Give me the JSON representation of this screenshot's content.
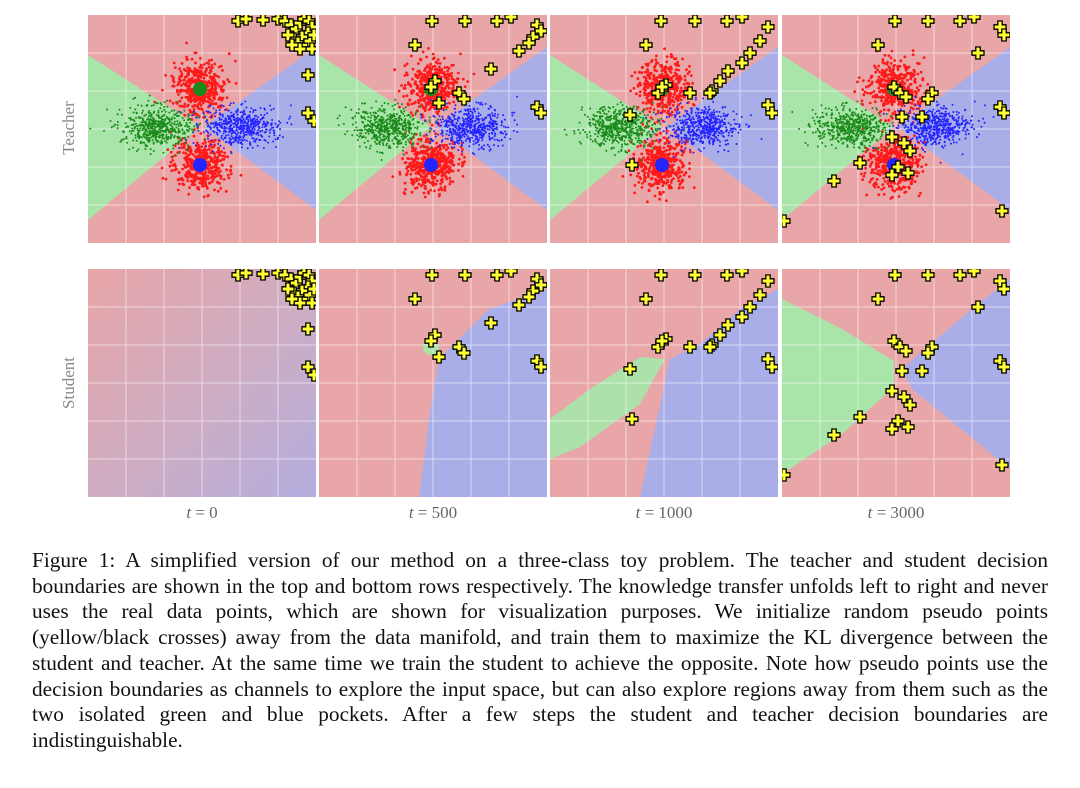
{
  "figure": {
    "row_labels": [
      "Teacher",
      "Student"
    ],
    "columns": [
      {
        "var": "t",
        "eq": " = ",
        "value": "0"
      },
      {
        "var": "t",
        "eq": " = ",
        "value": "500"
      },
      {
        "var": "t",
        "eq": " = ",
        "value": "1000"
      },
      {
        "var": "t",
        "eq": " = ",
        "value": "3000"
      }
    ],
    "colors": {
      "red_region": "#e8a6a8",
      "green_region": "#a9e4a9",
      "blue_region": "#aaaee8",
      "red_points": "#ff1a1a",
      "green_points": "#1a8a1a",
      "blue_points": "#2424ff",
      "pseudo_fill": "#ffff33",
      "pseudo_stroke": "#000000"
    },
    "legend_meaning": {
      "pseudo_points": "yellow/black crosses"
    }
  },
  "caption": {
    "label": "Figure 1:",
    "text": " A simplified version of our method on a three-class toy problem. The teacher and student decision boundaries are shown in the top and bottom rows respectively. The knowledge transfer unfolds left to right and never uses the real data points, which are shown for visualization purposes. We initialize random pseudo points (yellow/black crosses) away from the data manifold, and train them to maximize the KL divergence between the student and teacher. At the same time we train the student to achieve the opposite. Note how pseudo points use the decision boundaries as channels to explore the input space, but can also explore regions away from them such as the two isolated green and blue pockets. After a few steps the student and teacher decision boundaries are indistinguishable."
  }
}
